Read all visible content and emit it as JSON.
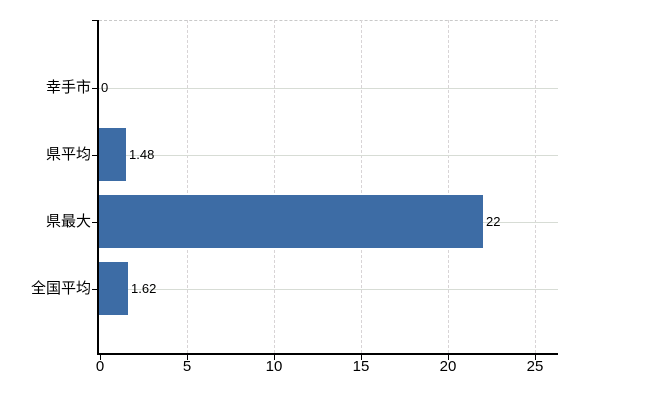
{
  "chart_data": {
    "type": "bar",
    "orientation": "horizontal",
    "title": "",
    "xlabel": "",
    "ylabel": "",
    "categories": [
      "幸手市",
      "県平均",
      "県最大",
      "全国平均"
    ],
    "values": [
      0,
      1.48,
      22,
      1.62
    ],
    "value_labels": [
      "0",
      "1.48",
      "22",
      "1.62"
    ],
    "x_ticks": [
      0,
      5,
      10,
      15,
      20,
      25
    ],
    "x_tick_labels": [
      "0",
      "5",
      "10",
      "15",
      "20",
      "25"
    ],
    "xlim": [
      0,
      26.35
    ],
    "grid": true,
    "legend": false,
    "colors": {
      "bar": "#3d6ca5",
      "axis": "#000000",
      "h_gridline": "#d7dcd5",
      "v_gridline": "#d8d4d6",
      "top_border": "#c9c9c9",
      "text": "#000000",
      "background": "#ffffff"
    }
  }
}
